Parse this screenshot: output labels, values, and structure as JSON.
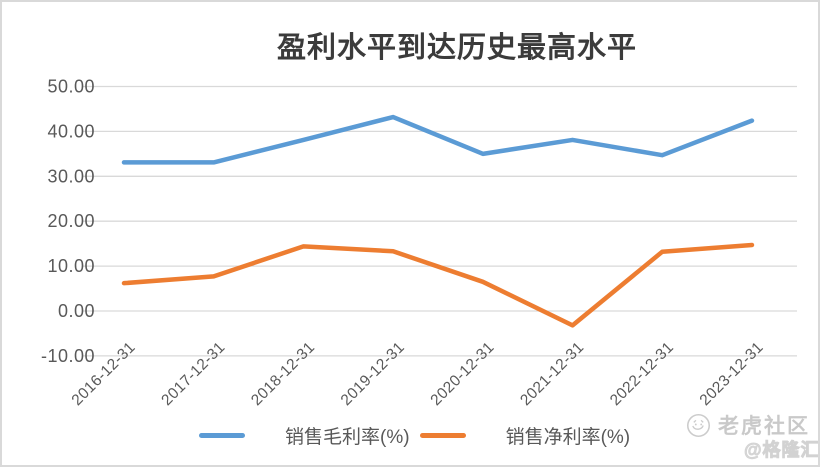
{
  "chart_data": {
    "type": "line",
    "title": "盈利水平到达历史最高水平",
    "categories": [
      "2016-12-31",
      "2017-12-31",
      "2018-12-31",
      "2019-12-31",
      "2020-12-31",
      "2021-12-31",
      "2022-12-31",
      "2023-12-31"
    ],
    "series": [
      {
        "name": "销售毛利率(%)",
        "color": "#5B9BD5",
        "values": [
          33.1,
          33.1,
          38.1,
          43.2,
          35.0,
          38.1,
          34.7,
          42.4
        ]
      },
      {
        "name": "销售净利率(%)",
        "color": "#ED7D31",
        "values": [
          6.2,
          7.7,
          14.4,
          13.3,
          6.5,
          -3.2,
          13.2,
          14.7
        ]
      }
    ],
    "xlabel": "",
    "ylabel": "",
    "ylim": [
      -10,
      50
    ],
    "ytick_step": 10,
    "ytick_decimals": 2,
    "grid": true,
    "legend_position": "bottom",
    "axis_text_color": "#595959",
    "gridline_color": "#d9d9d9"
  },
  "watermark": {
    "community_label": "老虎社区",
    "stamp_label": "@格隆汇"
  }
}
